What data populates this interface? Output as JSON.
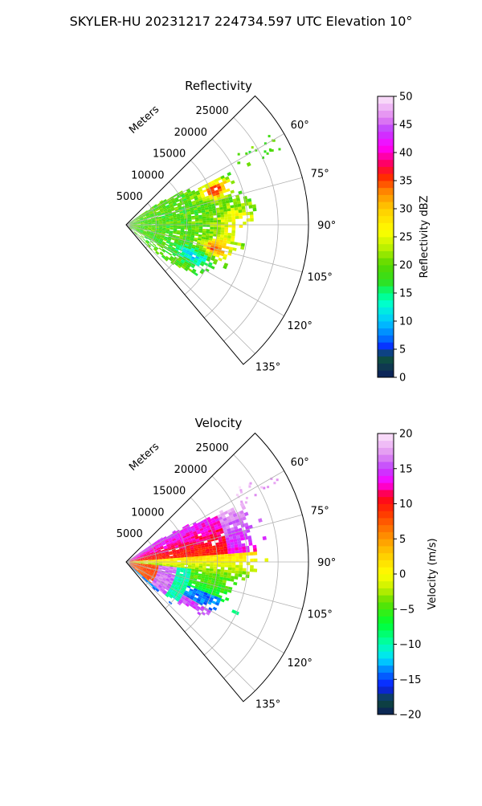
{
  "figure": {
    "title": "SKYLER-HU  20231217  224734.597 UTC Elevation 10°"
  },
  "chart_data": [
    {
      "type": "heatmap",
      "projection": "polar-sector",
      "title": "Reflectivity",
      "radial_label": "Meters",
      "radial_ticks": [
        5000,
        10000,
        15000,
        20000,
        25000
      ],
      "radial_tick_labels": [
        "5000",
        "10000",
        "15000",
        "20000",
        "25000"
      ],
      "rlim": [
        0,
        30000
      ],
      "azimuth_ticks": [
        60,
        75,
        90,
        105,
        120,
        135
      ],
      "azimuth_tick_labels": [
        "60°",
        "75°",
        "90°",
        "105°",
        "120°",
        "135°"
      ],
      "azimuth_range": [
        45,
        140
      ],
      "grid": true,
      "colorbar": {
        "label": "Reflectivity dBZ",
        "range": [
          0,
          50
        ],
        "ticks": [
          0,
          5,
          10,
          15,
          20,
          25,
          30,
          35,
          40,
          45,
          50
        ],
        "tick_labels": [
          "0",
          "5",
          "10",
          "15",
          "20",
          "25",
          "30",
          "35",
          "40",
          "45",
          "50"
        ],
        "stops": [
          {
            "v": 0,
            "c": "#0b1d5c"
          },
          {
            "v": 2,
            "c": "#0f3a4f"
          },
          {
            "v": 4,
            "c": "#0e5a3a"
          },
          {
            "v": 5,
            "c": "#0a1aff"
          },
          {
            "v": 7,
            "c": "#0070ff"
          },
          {
            "v": 10,
            "c": "#00c8ff"
          },
          {
            "v": 13,
            "c": "#00ffd0"
          },
          {
            "v": 15,
            "c": "#00ff80"
          },
          {
            "v": 17,
            "c": "#30e020"
          },
          {
            "v": 20,
            "c": "#56d800"
          },
          {
            "v": 23,
            "c": "#b8f000"
          },
          {
            "v": 26,
            "c": "#ffff00"
          },
          {
            "v": 30,
            "c": "#ffcc00"
          },
          {
            "v": 33,
            "c": "#ff8800"
          },
          {
            "v": 36,
            "c": "#ff2000"
          },
          {
            "v": 38,
            "c": "#ff0060"
          },
          {
            "v": 41,
            "c": "#ff00ff"
          },
          {
            "v": 44,
            "c": "#c040ff"
          },
          {
            "v": 46,
            "c": "#e080f0"
          },
          {
            "v": 50,
            "c": "#fde8fb"
          }
        ]
      }
    },
    {
      "type": "heatmap",
      "projection": "polar-sector",
      "title": "Velocity",
      "radial_label": "Meters",
      "radial_ticks": [
        5000,
        10000,
        15000,
        20000,
        25000
      ],
      "radial_tick_labels": [
        "5000",
        "10000",
        "15000",
        "20000",
        "25000"
      ],
      "rlim": [
        0,
        30000
      ],
      "azimuth_ticks": [
        60,
        75,
        90,
        105,
        120,
        135
      ],
      "azimuth_tick_labels": [
        "60°",
        "75°",
        "90°",
        "105°",
        "120°",
        "135°"
      ],
      "azimuth_range": [
        45,
        140
      ],
      "grid": true,
      "colorbar": {
        "label": "Velocity (m/s)",
        "range": [
          -20,
          20
        ],
        "ticks": [
          -20,
          -15,
          -10,
          -5,
          0,
          5,
          10,
          15,
          20
        ],
        "tick_labels": [
          "−20",
          "−15",
          "−10",
          "−5",
          "0",
          "5",
          "10",
          "15",
          "20"
        ],
        "stops": [
          {
            "v": -20,
            "c": "#0b1d5c"
          },
          {
            "v": -18,
            "c": "#0e4a3a"
          },
          {
            "v": -16,
            "c": "#0a1aff"
          },
          {
            "v": -14,
            "c": "#0070ff"
          },
          {
            "v": -12,
            "c": "#00e0ff"
          },
          {
            "v": -10,
            "c": "#00ffb0"
          },
          {
            "v": -7,
            "c": "#00ff30"
          },
          {
            "v": -4,
            "c": "#60e000"
          },
          {
            "v": -2,
            "c": "#c8f000"
          },
          {
            "v": 0,
            "c": "#ffff00"
          },
          {
            "v": 3,
            "c": "#ffc800"
          },
          {
            "v": 6,
            "c": "#ff8000"
          },
          {
            "v": 9,
            "c": "#ff3000"
          },
          {
            "v": 11,
            "c": "#ff0020"
          },
          {
            "v": 13,
            "c": "#ff00ff"
          },
          {
            "v": 15,
            "c": "#c040ff"
          },
          {
            "v": 17,
            "c": "#e090f0"
          },
          {
            "v": 20,
            "c": "#fde8fb"
          }
        ]
      }
    }
  ]
}
